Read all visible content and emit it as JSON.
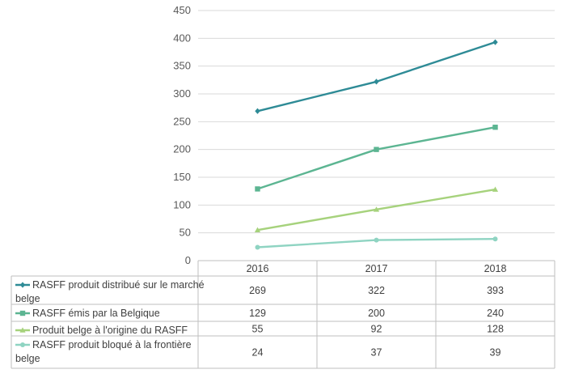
{
  "chart_data": {
    "type": "line",
    "categories": [
      "2016",
      "2017",
      "2018"
    ],
    "ylim": [
      0,
      450
    ],
    "yticks": [
      0,
      50,
      100,
      150,
      200,
      250,
      300,
      350,
      400,
      450
    ],
    "grid": true,
    "legend_placement": "data-table-left",
    "series": [
      {
        "name": "RASFF produit distribué sur le marché belge",
        "values": [
          269,
          322,
          393
        ],
        "color": "#2e8b96",
        "marker": "diamond"
      },
      {
        "name": "RASFF émis par la Belgique",
        "values": [
          129,
          200,
          240
        ],
        "color": "#5cb592",
        "marker": "square"
      },
      {
        "name": "Produit belge à l'origine du RASFF",
        "values": [
          55,
          92,
          128
        ],
        "color": "#a6d27c",
        "marker": "triangle"
      },
      {
        "name": "RASFF produit bloqué à la frontière belge",
        "values": [
          24,
          37,
          39
        ],
        "color": "#8fd4c2",
        "marker": "circle"
      }
    ]
  }
}
